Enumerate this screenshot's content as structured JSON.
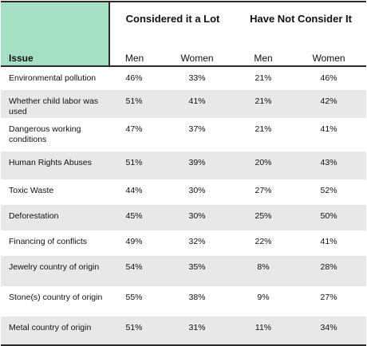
{
  "table": {
    "groups": [
      "Considered it a Lot",
      "Have Not Consider It"
    ],
    "issue_header": "Issue",
    "sub_headers": [
      "Men",
      "Women",
      "Men",
      "Women"
    ],
    "rows": [
      {
        "issue": "Environmental pollution",
        "values": [
          "46%",
          "33%",
          "21%",
          "46%"
        ]
      },
      {
        "issue": "Whether child labor was used",
        "values": [
          "51%",
          "41%",
          "21%",
          "42%"
        ]
      },
      {
        "issue": "Dangerous working conditions",
        "values": [
          "47%",
          "37%",
          "21%",
          "41%"
        ]
      },
      {
        "issue": "Human Rights Abuses",
        "values": [
          "51%",
          "39%",
          "20%",
          "43%"
        ]
      },
      {
        "issue": "Toxic Waste",
        "values": [
          "44%",
          "30%",
          "27%",
          "52%"
        ]
      },
      {
        "issue": "Deforestation",
        "values": [
          "45%",
          "30%",
          "25%",
          "50%"
        ]
      },
      {
        "issue": "Financing of conflicts",
        "values": [
          "49%",
          "32%",
          "22%",
          "41%"
        ]
      },
      {
        "issue": "Jewelry country of origin",
        "values": [
          "54%",
          "35%",
          "8%",
          "28%"
        ]
      },
      {
        "issue": "Stone(s) country of origin",
        "values": [
          "55%",
          "38%",
          "9%",
          "27%"
        ]
      },
      {
        "issue": "Metal country of origin",
        "values": [
          "51%",
          "31%",
          "11%",
          "34%"
        ]
      }
    ]
  }
}
